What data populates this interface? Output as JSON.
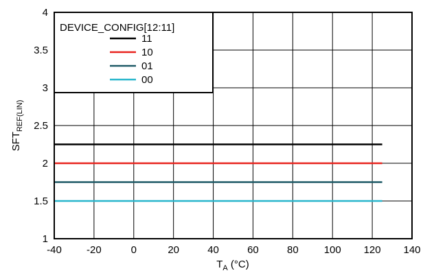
{
  "chart_data": {
    "type": "line",
    "xlabel": {
      "main": "T",
      "sub": "A",
      "unit": " (°C)"
    },
    "ylabel": {
      "main": "SFT",
      "sub": "REF(LIN)"
    },
    "xlim": [
      -40,
      140
    ],
    "ylim": [
      1,
      4
    ],
    "xticks": [
      -40,
      -20,
      0,
      20,
      40,
      60,
      80,
      100,
      120,
      140
    ],
    "yticks": [
      1,
      1.5,
      2,
      2.5,
      3,
      3.5,
      4
    ],
    "ytick_labels": [
      "1",
      "1.5",
      "2",
      "2.5",
      "3",
      "3.5",
      "4"
    ],
    "grid": true,
    "legend": {
      "title": "DEVICE_CONFIG[12:11]",
      "placement": "top-left"
    },
    "series": [
      {
        "name": "11",
        "color": "#000000",
        "x": [
          -40,
          125
        ],
        "y": [
          2.25,
          2.25
        ]
      },
      {
        "name": "10",
        "color": "#e8221d",
        "x": [
          -40,
          125
        ],
        "y": [
          2.0,
          2.0
        ]
      },
      {
        "name": "01",
        "color": "#1e5a66",
        "x": [
          -40,
          125
        ],
        "y": [
          1.75,
          1.75
        ]
      },
      {
        "name": "00",
        "color": "#28b6cc",
        "x": [
          -40,
          125
        ],
        "y": [
          1.5,
          1.5
        ]
      }
    ]
  }
}
